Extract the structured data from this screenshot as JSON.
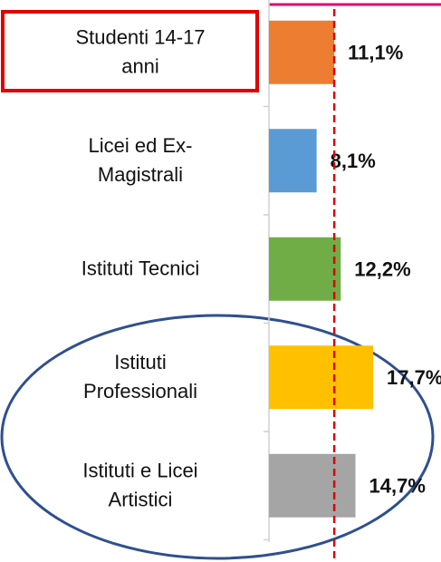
{
  "chart_data": {
    "type": "hbar",
    "categories": [
      [
        "Studenti 14-17",
        "anni"
      ],
      [
        "Licei ed Ex-",
        "Magistrali"
      ],
      [
        "Istituti Tecnici"
      ],
      [
        "Istituti",
        "Professionali"
      ],
      [
        "Istituti e Licei",
        "Artistici"
      ]
    ],
    "values": [
      11.1,
      8.1,
      12.2,
      17.7,
      14.7
    ],
    "value_labels": [
      "11,1%",
      "8,1%",
      "12,2%",
      "17,7%",
      "14,7%"
    ],
    "colors": [
      "#ed7d31",
      "#5b9bd5",
      "#70ad47",
      "#ffc000",
      "#a5a5a5"
    ],
    "xlim": [
      0,
      30
    ],
    "reference_line": {
      "value": 11.1,
      "color": "#e00000"
    }
  }
}
